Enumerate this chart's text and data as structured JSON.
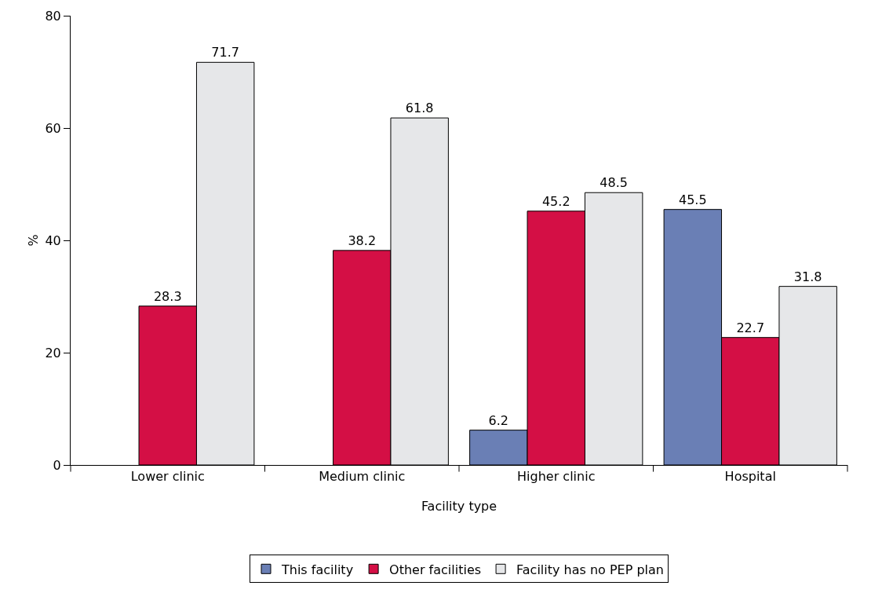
{
  "chart_data": {
    "type": "bar",
    "xlabel": "Facility type",
    "ylabel": "%",
    "categories": [
      "Lower clinic",
      "Medium clinic",
      "Higher clinic",
      "Hospital"
    ],
    "series": [
      {
        "name": "This facility",
        "color": "#6a7fb5",
        "values": [
          null,
          null,
          6.2,
          45.5
        ]
      },
      {
        "name": "Other facilities",
        "color": "#d40f45",
        "values": [
          28.3,
          38.2,
          45.2,
          22.7
        ]
      },
      {
        "name": "Facility has no PEP plan",
        "color": "#e6e7e9",
        "values": [
          71.7,
          61.8,
          48.5,
          31.8
        ]
      }
    ],
    "ylim": [
      0,
      80
    ],
    "yticks": [
      0,
      20,
      40,
      60,
      80
    ],
    "grid": false,
    "legend": "bottom",
    "data_labels": true
  }
}
